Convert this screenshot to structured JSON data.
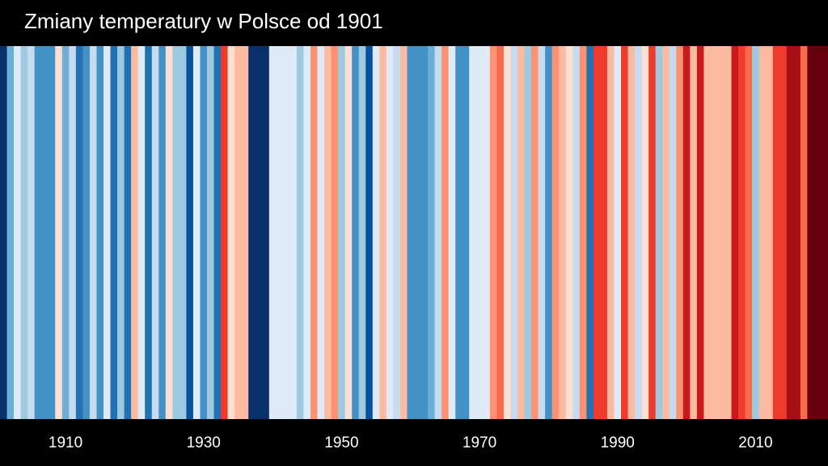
{
  "chart_data": {
    "type": "heatmap",
    "title": "Zmiany temperatury w Polsce od 1901",
    "x_start": 1901,
    "x_end": 2021,
    "x_ticks": [
      1910,
      1930,
      1950,
      1970,
      1990,
      2010
    ],
    "x_tick_labels": [
      "1910",
      "1930",
      "1950",
      "1970",
      "1990",
      "2010"
    ],
    "ylabel": "",
    "color_levels": [
      "#08306b",
      "#08519c",
      "#2171b5",
      "#4292c6",
      "#6baed6",
      "#9ecae1",
      "#c6dbef",
      "#deebf7",
      "#fee0d2",
      "#fcbba1",
      "#fc9272",
      "#fb6a4a",
      "#ef3b2c",
      "#cb181d",
      "#a50f15",
      "#67000d"
    ],
    "color_index": [
      0,
      4,
      7,
      5,
      6,
      3,
      3,
      3,
      8,
      4,
      6,
      2,
      3,
      6,
      3,
      7,
      2,
      5,
      2,
      9,
      7,
      2,
      6,
      3,
      8,
      5,
      5,
      1,
      7,
      3,
      5,
      2,
      12,
      8,
      9,
      9,
      0,
      0,
      0,
      7,
      7,
      7,
      7,
      5,
      7,
      10,
      7,
      9,
      10,
      5,
      8,
      3,
      5,
      1,
      7,
      9,
      7,
      6,
      9,
      3,
      3,
      3,
      4,
      6,
      10,
      7,
      3,
      3,
      7,
      7,
      7,
      10,
      11,
      8,
      6,
      9,
      5,
      10,
      6,
      3,
      10,
      9,
      8,
      6,
      10,
      2,
      12,
      12,
      9,
      7,
      12,
      9,
      6,
      8,
      12,
      5,
      9,
      6,
      10,
      13,
      9,
      13,
      9,
      9,
      9,
      9,
      13,
      12,
      11,
      5,
      9,
      9,
      12,
      12,
      14,
      14,
      11,
      15,
      15,
      15
    ]
  }
}
